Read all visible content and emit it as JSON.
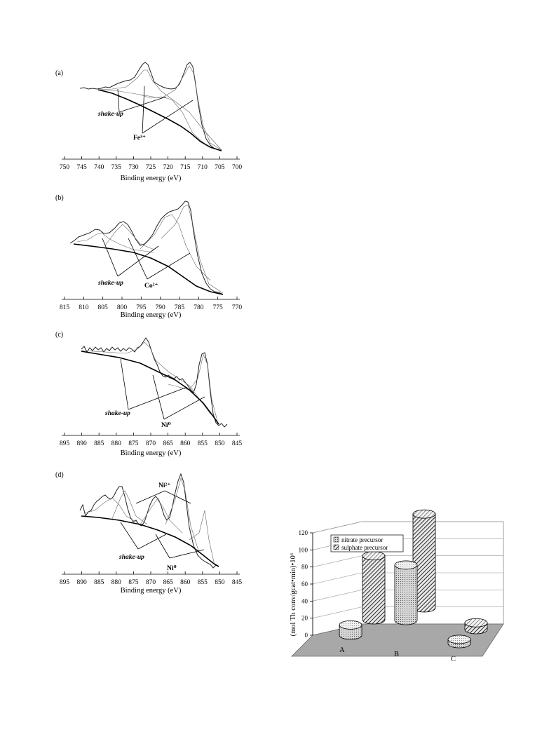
{
  "chart_data": [
    {
      "type": "line",
      "panel": "(a)",
      "xlabel": "Binding energy (eV)",
      "xlim": [
        750,
        700
      ],
      "xticks": [
        750,
        745,
        740,
        735,
        730,
        725,
        720,
        715,
        710,
        705,
        700
      ],
      "annotations": [
        "shake-up",
        "Fe³⁺"
      ],
      "peaks_eV": [
        711,
        725
      ]
    },
    {
      "type": "line",
      "panel": "(b)",
      "xlabel": "Binding energy (eV)",
      "xlim": [
        815,
        770
      ],
      "xticks": [
        815,
        810,
        805,
        800,
        795,
        790,
        785,
        780,
        775,
        770
      ],
      "annotations": [
        "shake-up",
        "Co²⁺"
      ],
      "peaks_eV": [
        781,
        787,
        797,
        804
      ]
    },
    {
      "type": "line",
      "panel": "(c)",
      "xlabel": "Binding energy (eV)",
      "xlim": [
        895,
        845
      ],
      "xticks": [
        895,
        890,
        885,
        880,
        875,
        870,
        865,
        860,
        855,
        850,
        845
      ],
      "annotations": [
        "shake-up",
        "Ni⁰"
      ],
      "peaks_eV": [
        853,
        870
      ]
    },
    {
      "type": "line",
      "panel": "(d)",
      "xlabel": "Binding energy (eV)",
      "xlim": [
        895,
        845
      ],
      "xticks": [
        895,
        890,
        885,
        880,
        875,
        870,
        865,
        860,
        855,
        850,
        845
      ],
      "annotations": [
        "Ni²⁺",
        "shake-up",
        "Ni⁰"
      ],
      "peaks_eV": [
        853,
        856,
        862,
        874,
        880
      ]
    },
    {
      "type": "bar",
      "subtype": "3d-cylinder",
      "ylabel": "(mol Th conv/gcat•min)•10⁶",
      "ylim": [
        0,
        120
      ],
      "yticks": [
        0,
        20,
        40,
        60,
        80,
        100,
        120
      ],
      "categories": [
        "A",
        "B",
        "C"
      ],
      "series": [
        {
          "name": "nitrate precursor",
          "values": [
            12,
            65,
            5
          ],
          "pattern": "dotted"
        },
        {
          "name": "sulphate precursor",
          "values": [
            75,
            110,
            8
          ],
          "pattern": "hatched"
        }
      ],
      "legend_position": "top-left"
    }
  ]
}
